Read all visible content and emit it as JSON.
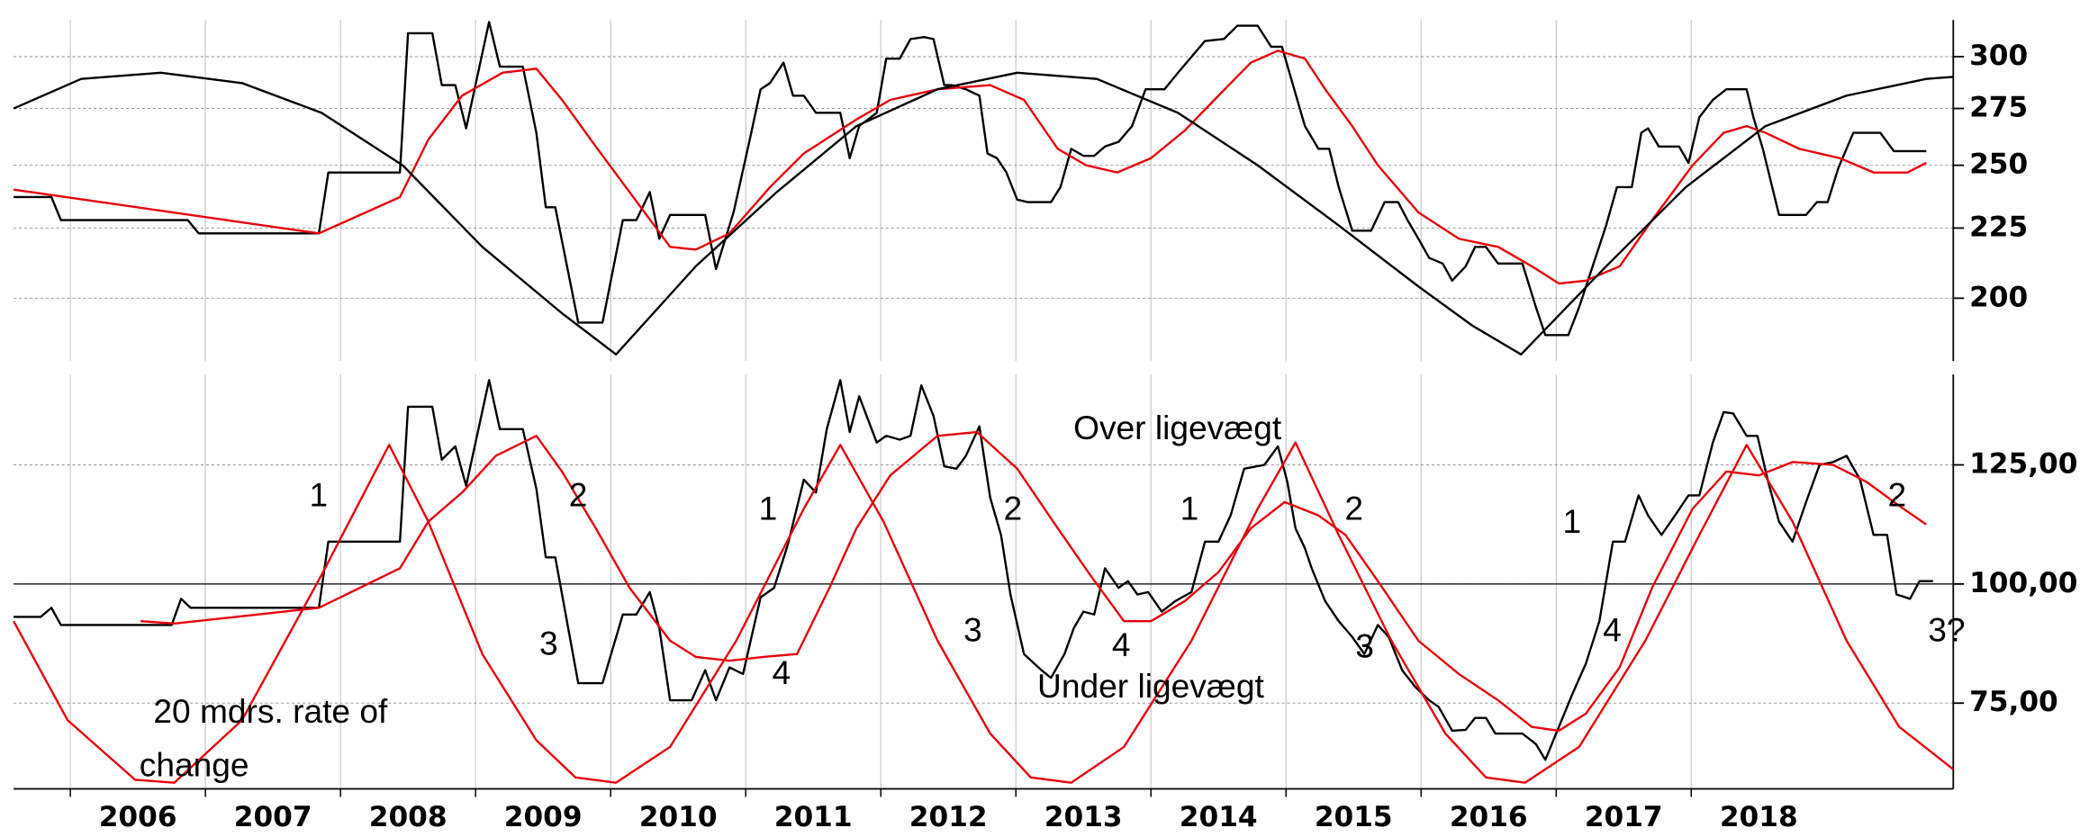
{
  "chart_data": [
    {
      "type": "line",
      "log": true,
      "grid": true,
      "xlim": [
        2005.58,
        2019.94
      ],
      "ylim": [
        180,
        319
      ],
      "yticks": [
        300,
        275,
        250,
        225,
        200
      ],
      "series": [
        {
          "color": "#000000",
          "x": [
            2005.58,
            2005.86,
            2005.93,
            2006.87,
            2006.95,
            2007.84,
            2007.91,
            2008.44,
            2008.5,
            2008.68,
            2008.75,
            2008.85,
            2008.93,
            2009.1,
            2009.18,
            2009.35,
            2009.45,
            2009.52,
            2009.59,
            2009.76,
            2009.94,
            2010.09,
            2010.19,
            2010.29,
            2010.36,
            2010.44,
            2010.7,
            2010.78,
            2010.91,
            2011.03,
            2011.11,
            2011.18,
            2011.28,
            2011.35,
            2011.43,
            2011.52,
            2011.7,
            2011.77,
            2011.84,
            2011.97,
            2012.04,
            2012.14,
            2012.22,
            2012.32,
            2012.39,
            2012.47,
            2012.53,
            2012.63,
            2012.73,
            2012.79,
            2012.86,
            2012.93,
            2013.01,
            2013.09,
            2013.26,
            2013.33,
            2013.41,
            2013.5,
            2013.58,
            2013.66,
            2013.76,
            2013.86,
            2013.96,
            2014.1,
            2014.2,
            2014.4,
            2014.54,
            2014.64,
            2014.79,
            2014.89,
            2014.97,
            2015.07,
            2015.14,
            2015.24,
            2015.32,
            2015.39,
            2015.49,
            2015.63,
            2015.73,
            2015.83,
            2015.9,
            2015.98,
            2016.06,
            2016.16,
            2016.23,
            2016.33,
            2016.4,
            2016.48,
            2016.57,
            2016.75,
            2016.85,
            2016.92,
            2017.09,
            2017.17,
            2017.27,
            2017.37,
            2017.45,
            2017.56,
            2017.63,
            2017.68,
            2017.76,
            2017.91,
            2017.98,
            2018.06,
            2018.16,
            2018.26,
            2018.41,
            2018.46,
            2018.53,
            2018.65,
            2018.85,
            2018.93,
            2019.01,
            2019.09,
            2019.2,
            2019.4,
            2019.5,
            2019.74
          ],
          "values": [
            237,
            237,
            228,
            228,
            223,
            223,
            247,
            247,
            312,
            312,
            286,
            286,
            266,
            318,
            295,
            295,
            264,
            233,
            233,
            192,
            192,
            228,
            228,
            239,
            221,
            230,
            230,
            210,
            231,
            261,
            284,
            287,
            297,
            281,
            281,
            273,
            273,
            253,
            267,
            273,
            299,
            299,
            309,
            310,
            309,
            286,
            286,
            284,
            281,
            255,
            253,
            247,
            236,
            235,
            235,
            241,
            257,
            254,
            254,
            258,
            260,
            267,
            284,
            284,
            292,
            308,
            309,
            316,
            316,
            305,
            305,
            282,
            267,
            257,
            257,
            241,
            224,
            224,
            235,
            235,
            228,
            221,
            214,
            212,
            206,
            211,
            218,
            218,
            212,
            212,
            197,
            188,
            188,
            197,
            211,
            226,
            241,
            241,
            264,
            266,
            258,
            258,
            251,
            271,
            279,
            284,
            284,
            271,
            257,
            230,
            230,
            235,
            235,
            249,
            264,
            264,
            256,
            256
          ]
        },
        {
          "color": "#e8000b",
          "x": [
            2005.58,
            2007.84,
            2008.44,
            2008.65,
            2008.9,
            2009.2,
            2009.45,
            2009.64,
            2009.89,
            2010.14,
            2010.44,
            2010.63,
            2010.88,
            2011.18,
            2011.43,
            2011.82,
            2012.07,
            2012.42,
            2012.81,
            2013.06,
            2013.31,
            2013.52,
            2013.75,
            2014.0,
            2014.25,
            2014.5,
            2014.74,
            2014.94,
            2015.14,
            2015.29,
            2015.49,
            2015.68,
            2015.98,
            2016.28,
            2016.57,
            2016.82,
            2017.02,
            2017.22,
            2017.47,
            2017.71,
            2018.01,
            2018.24,
            2018.41,
            2018.55,
            2018.8,
            2019.1,
            2019.35,
            2019.6,
            2019.74
          ],
          "values": [
            240,
            223,
            237,
            261,
            281,
            292,
            294,
            279,
            258,
            239,
            218,
            217,
            223,
            241,
            255,
            270,
            279,
            284,
            286,
            279,
            257,
            250,
            247,
            253,
            265,
            281,
            297,
            303,
            299,
            284,
            267,
            250,
            231,
            221,
            218,
            211,
            205,
            206,
            211,
            228,
            250,
            264,
            267,
            264,
            257,
            253,
            247,
            247,
            251
          ]
        },
        {
          "color": "#000000",
          "x": [
            2005.58,
            2006.08,
            2006.67,
            2007.27,
            2007.86,
            2008.46,
            2009.05,
            2009.64,
            2010.04,
            2010.63,
            2011.23,
            2011.82,
            2012.42,
            2013.01,
            2013.6,
            2014.2,
            2014.79,
            2015.39,
            2015.98,
            2016.38,
            2016.74,
            2017.37,
            2017.96,
            2018.55,
            2019.15,
            2019.74,
            2019.94
          ],
          "values": [
            275,
            289,
            292,
            287,
            273,
            250,
            218,
            195,
            182,
            211,
            239,
            267,
            284,
            292,
            289,
            273,
            250,
            226,
            204,
            191,
            182,
            211,
            241,
            267,
            281,
            289,
            290
          ]
        }
      ]
    },
    {
      "type": "line",
      "grid": true,
      "reference_line": 100,
      "xlim": [
        2005.58,
        2019.94
      ],
      "ylim": [
        57,
        144
      ],
      "xticks": [
        2006,
        2007,
        2008,
        2009,
        2010,
        2011,
        2012,
        2013,
        2014,
        2015,
        2016,
        2017,
        2018
      ],
      "yticks": [
        {
          "value": 125,
          "label": "125,00"
        },
        {
          "value": 100,
          "label": "100,00"
        },
        {
          "value": 75,
          "label": "75,00"
        }
      ],
      "series": [
        {
          "color": "#000000",
          "x": [
            2005.58,
            2005.78,
            2005.86,
            2005.93,
            2006.75,
            2006.82,
            2006.89,
            2007.84,
            2007.91,
            2008.44,
            2008.5,
            2008.68,
            2008.75,
            2008.85,
            2008.93,
            2009.1,
            2009.18,
            2009.35,
            2009.45,
            2009.52,
            2009.59,
            2009.76,
            2009.94,
            2010.09,
            2010.19,
            2010.29,
            2010.36,
            2010.44,
            2010.6,
            2010.7,
            2010.78,
            2010.88,
            2010.98,
            2011.11,
            2011.21,
            2011.31,
            2011.43,
            2011.52,
            2011.6,
            2011.7,
            2011.77,
            2011.84,
            2011.97,
            2012.04,
            2012.14,
            2012.22,
            2012.3,
            2012.39,
            2012.47,
            2012.56,
            2012.63,
            2012.73,
            2012.81,
            2012.89,
            2012.96,
            2013.06,
            2013.19,
            2013.26,
            2013.36,
            2013.43,
            2013.5,
            2013.58,
            2013.66,
            2013.76,
            2013.83,
            2013.9,
            2013.98,
            2014.08,
            2014.18,
            2014.3,
            2014.4,
            2014.5,
            2014.59,
            2014.69,
            2014.84,
            2014.94,
            2015.01,
            2015.07,
            2015.14,
            2015.19,
            2015.29,
            2015.39,
            2015.49,
            2015.58,
            2015.68,
            2015.76,
            2015.86,
            2015.96,
            2016.06,
            2016.13,
            2016.23,
            2016.33,
            2016.4,
            2016.48,
            2016.55,
            2016.75,
            2016.85,
            2016.92,
            2017.02,
            2017.12,
            2017.22,
            2017.32,
            2017.42,
            2017.51,
            2017.61,
            2017.68,
            2017.78,
            2017.88,
            2017.98,
            2018.06,
            2018.16,
            2018.24,
            2018.31,
            2018.41,
            2018.49,
            2018.57,
            2018.65,
            2018.75,
            2018.85,
            2018.95,
            2019.05,
            2019.15,
            2019.25,
            2019.35,
            2019.45,
            2019.52,
            2019.62,
            2019.69,
            2019.79
          ],
          "values": [
            93.1,
            93.1,
            95.0,
            91.4,
            91.4,
            96.9,
            95.0,
            95.0,
            108.9,
            108.9,
            137.2,
            137.2,
            126.1,
            128.9,
            120.6,
            142.8,
            132.5,
            132.5,
            120.0,
            105.6,
            105.6,
            79.2,
            79.2,
            93.6,
            93.6,
            98.3,
            90.8,
            75.6,
            75.6,
            81.9,
            75.6,
            82.5,
            81.1,
            97.2,
            99.2,
            108.1,
            121.9,
            119.2,
            132.5,
            142.8,
            131.9,
            139.4,
            129.7,
            131.1,
            130.3,
            131.1,
            141.7,
            135.3,
            124.7,
            124.2,
            126.9,
            133.1,
            118.1,
            110.3,
            97.8,
            85.3,
            81.9,
            80.3,
            85.3,
            90.8,
            94.2,
            93.6,
            103.3,
            99.2,
            100.6,
            97.8,
            98.3,
            94.2,
            96.4,
            98.3,
            108.9,
            108.9,
            114.4,
            124.2,
            125.0,
            128.9,
            121.4,
            111.7,
            107.5,
            103.3,
            96.4,
            92.2,
            88.9,
            85.3,
            91.4,
            88.9,
            81.9,
            78.3,
            75.6,
            74.2,
            69.2,
            69.4,
            71.9,
            71.9,
            68.6,
            68.6,
            66.4,
            63.1,
            70.0,
            76.9,
            83.3,
            92.2,
            108.9,
            108.9,
            118.6,
            114.4,
            110.3,
            114.4,
            118.6,
            118.6,
            129.7,
            136.1,
            135.8,
            131.1,
            131.1,
            121.4,
            113.1,
            108.9,
            117.2,
            125.0,
            125.6,
            126.9,
            121.9,
            110.3,
            110.3,
            97.8,
            96.9,
            100.6,
            100.6
          ]
        },
        {
          "color": "#e8000b",
          "x": [
            2006.52,
            2006.77,
            2007.84,
            2008.44,
            2008.65,
            2008.9,
            2009.15,
            2009.45,
            2009.64,
            2009.89,
            2010.14,
            2010.44,
            2010.63,
            2010.88,
            2011.13,
            2011.38,
            2011.62,
            2011.82,
            2012.07,
            2012.42,
            2012.71,
            2013.01,
            2013.31,
            2013.55,
            2013.8,
            2014.0,
            2014.25,
            2014.5,
            2014.74,
            2014.99,
            2015.24,
            2015.44,
            2015.68,
            2015.98,
            2016.28,
            2016.57,
            2016.82,
            2017.02,
            2017.22,
            2017.47,
            2017.71,
            2018.01,
            2018.26,
            2018.5,
            2018.75,
            2019.05,
            2019.3,
            2019.54,
            2019.74
          ],
          "values": [
            92.2,
            91.7,
            95.0,
            103.3,
            113.1,
            119.2,
            126.9,
            131.1,
            123.6,
            111.7,
            99.2,
            88.1,
            84.7,
            83.9,
            84.7,
            85.3,
            99.2,
            111.7,
            122.8,
            131.1,
            131.9,
            124.2,
            111.7,
            101.9,
            92.2,
            92.2,
            96.4,
            102.5,
            111.7,
            117.2,
            114.4,
            110.3,
            100.6,
            88.1,
            81.1,
            75.6,
            70.0,
            69.2,
            72.8,
            82.5,
            99.2,
            115.8,
            123.6,
            122.8,
            125.6,
            125.0,
            121.4,
            116.4,
            112.5
          ]
        },
        {
          "color": "#e8000b",
          "x": [
            2005.58,
            2005.98,
            2006.48,
            2006.77,
            2007.27,
            2007.86,
            2008.36,
            2008.65,
            2009.05,
            2009.45,
            2009.74,
            2010.04,
            2010.44,
            2010.93,
            2011.43,
            2011.7,
            2012.02,
            2012.42,
            2012.81,
            2013.11,
            2013.41,
            2013.8,
            2014.3,
            2014.79,
            2015.07,
            2015.39,
            2015.78,
            2016.18,
            2016.48,
            2016.77,
            2017.17,
            2017.66,
            2018.06,
            2018.41,
            2018.75,
            2019.15,
            2019.54,
            2019.94
          ],
          "values": [
            92.2,
            71.4,
            58.9,
            58.3,
            71.4,
            101.9,
            129.2,
            113.1,
            85.3,
            67.2,
            59.4,
            58.3,
            65.8,
            88.1,
            115.8,
            129.2,
            113.1,
            88.1,
            68.6,
            59.4,
            58.3,
            65.8,
            88.1,
            115.8,
            129.7,
            110.3,
            88.1,
            68.6,
            59.4,
            58.3,
            65.8,
            88.1,
            110.3,
            129.2,
            113.1,
            88.1,
            70.0,
            61.1
          ]
        }
      ],
      "annotations": [
        "1",
        "2",
        "3",
        "1",
        "2",
        "3",
        "4",
        "4",
        "1",
        "2",
        "3",
        "1",
        "4",
        "2",
        "3?",
        "Over ligevægt",
        "Under ligevægt",
        "20 mdrs. rate of",
        "change"
      ]
    }
  ]
}
